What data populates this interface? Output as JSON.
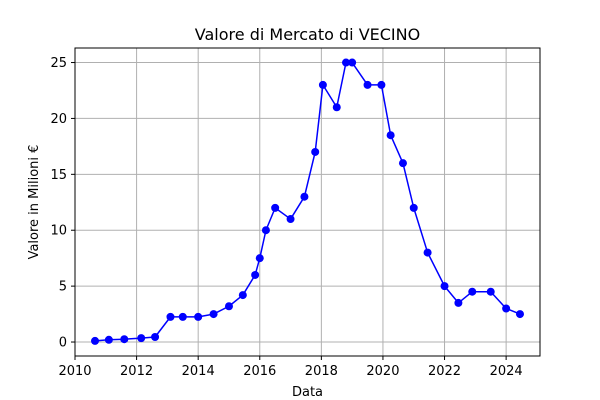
{
  "chart_data": {
    "type": "line",
    "title": "Valore di Mercato di VECINO",
    "xlabel": "Data",
    "ylabel": "Valore in Milioni €",
    "xlim": [
      2010.0,
      2025.1
    ],
    "ylim": [
      -1.25,
      26.3
    ],
    "xticks": [
      2010,
      2012,
      2014,
      2016,
      2018,
      2020,
      2022,
      2024
    ],
    "yticks": [
      0,
      5,
      10,
      15,
      20,
      25
    ],
    "grid": true,
    "legend": "none",
    "series": [
      {
        "color": "#0000ff",
        "marker": "circle",
        "points": [
          {
            "x": 2010.65,
            "y": 0.1
          },
          {
            "x": 2011.1,
            "y": 0.2
          },
          {
            "x": 2011.6,
            "y": 0.25
          },
          {
            "x": 2012.15,
            "y": 0.35
          },
          {
            "x": 2012.6,
            "y": 0.45
          },
          {
            "x": 2013.1,
            "y": 2.25
          },
          {
            "x": 2013.5,
            "y": 2.25
          },
          {
            "x": 2014.0,
            "y": 2.25
          },
          {
            "x": 2014.5,
            "y": 2.5
          },
          {
            "x": 2015.0,
            "y": 3.2
          },
          {
            "x": 2015.45,
            "y": 4.2
          },
          {
            "x": 2015.85,
            "y": 6.0
          },
          {
            "x": 2016.0,
            "y": 7.5
          },
          {
            "x": 2016.2,
            "y": 10.0
          },
          {
            "x": 2016.5,
            "y": 12.0
          },
          {
            "x": 2017.0,
            "y": 11.0
          },
          {
            "x": 2017.45,
            "y": 13.0
          },
          {
            "x": 2017.8,
            "y": 17.0
          },
          {
            "x": 2018.05,
            "y": 23.0
          },
          {
            "x": 2018.5,
            "y": 21.0
          },
          {
            "x": 2018.8,
            "y": 25.0
          },
          {
            "x": 2019.0,
            "y": 25.0
          },
          {
            "x": 2019.5,
            "y": 23.0
          },
          {
            "x": 2019.95,
            "y": 23.0
          },
          {
            "x": 2020.25,
            "y": 18.5
          },
          {
            "x": 2020.65,
            "y": 16.0
          },
          {
            "x": 2021.0,
            "y": 12.0
          },
          {
            "x": 2021.45,
            "y": 8.0
          },
          {
            "x": 2022.0,
            "y": 5.0
          },
          {
            "x": 2022.45,
            "y": 3.5
          },
          {
            "x": 2022.9,
            "y": 4.5
          },
          {
            "x": 2023.5,
            "y": 4.5
          },
          {
            "x": 2024.0,
            "y": 3.0
          },
          {
            "x": 2024.45,
            "y": 2.5
          }
        ]
      }
    ]
  }
}
